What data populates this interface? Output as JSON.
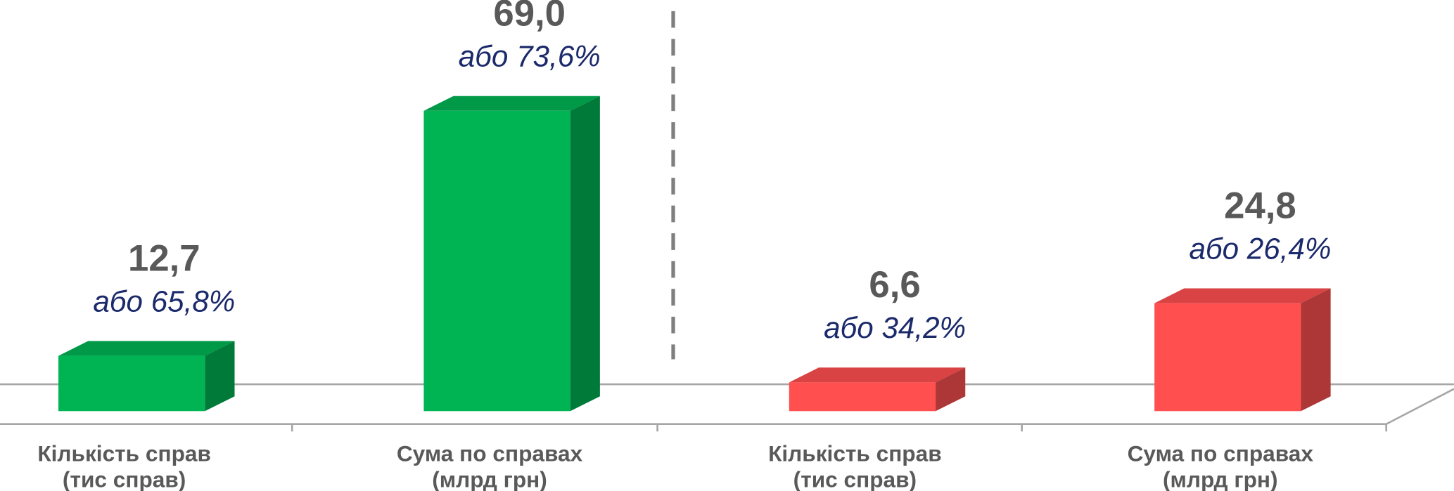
{
  "chart_data": {
    "type": "bar3d",
    "categories": [
      [
        "Кількість справ",
        "(тис справ)"
      ],
      [
        "Сума по справах",
        "(млрд грн)"
      ],
      [
        "Кількість справ",
        "(тис справ)"
      ],
      [
        "Сума по справах",
        "(млрд грн)"
      ]
    ],
    "values": [
      12.7,
      69.0,
      6.6,
      24.8
    ],
    "value_labels": [
      "12,7",
      "69,0",
      "6,6",
      "24,8"
    ],
    "share_labels": [
      "або 65,8%",
      "або 73,6%",
      "або 34,2%",
      "або 26,4%"
    ],
    "colors": [
      "#00b454",
      "#00b454",
      "#ff4f4f",
      "#ff4f4f"
    ]
  }
}
